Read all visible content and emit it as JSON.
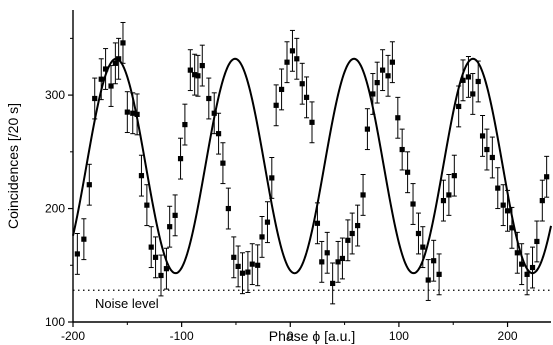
{
  "chart_data": {
    "type": "scatter",
    "xlabel": "Phase ϕ [a.u.]",
    "ylabel": "Coincidences [/20 s]",
    "xlim": [
      -200,
      240
    ],
    "ylim": [
      100,
      375
    ],
    "x_ticks": [
      -200,
      -100,
      0,
      100,
      200
    ],
    "y_ticks": [
      100,
      200,
      300
    ],
    "x_tick_labels": [
      "-200",
      "-100",
      "0",
      "100",
      "200"
    ],
    "y_tick_labels": [
      "100",
      "200",
      "300"
    ],
    "grid": false,
    "series": [
      {
        "style": "points-with-error-bars",
        "x": [
          -196,
          -190,
          -185,
          -180,
          -174,
          -170,
          -165,
          -161,
          -158,
          -154,
          -150,
          -145,
          -141,
          -137,
          -132,
          -128,
          -124,
          -119,
          -114,
          -111,
          -106,
          -101,
          -97,
          -92,
          -88,
          -85,
          -81,
          -75,
          -70,
          -66,
          -62,
          -57,
          -52,
          -48,
          -44,
          -39,
          -35,
          -30,
          -26,
          -21,
          -17,
          -13,
          -8,
          -3,
          2,
          6,
          11,
          15,
          20,
          25,
          29,
          34,
          39,
          44,
          48,
          53,
          57,
          62,
          67,
          71,
          76,
          80,
          85,
          90,
          94,
          99,
          103,
          108,
          113,
          118,
          122,
          127,
          132,
          137,
          141,
          146,
          151,
          155,
          159,
          164,
          168,
          173,
          177,
          181,
          186,
          191,
          196,
          200,
          204,
          209,
          213,
          218,
          223,
          227,
          232,
          236
        ],
        "y": [
          160,
          173,
          221,
          297,
          314,
          323,
          308,
          328,
          332,
          346,
          285,
          284,
          283,
          229,
          203,
          166,
          157,
          141,
          147,
          184,
          194,
          244,
          274,
          322,
          318,
          317,
          326,
          297,
          284,
          266,
          240,
          200,
          157,
          149,
          143,
          144,
          151,
          150,
          175,
          188,
          227,
          291,
          305,
          329,
          339,
          332,
          310,
          298,
          276,
          187,
          153,
          161,
          134,
          153,
          156,
          172,
          178,
          185,
          212,
          270,
          301,
          311,
          322,
          317,
          329,
          280,
          252,
          232,
          204,
          178,
          166,
          137,
          154,
          142,
          207,
          212,
          229,
          290,
          313,
          316,
          301,
          312,
          264,
          252,
          245,
          218,
          203,
          198,
          183,
          161,
          151,
          142,
          148,
          171,
          207,
          228
        ],
        "yerr": 18
      },
      {
        "style": "line",
        "model": "y = 237.5 + 94.5 * cos(2*pi*(x + 50.8)/109.5)",
        "x": [
          -200,
          -190,
          -180,
          -170,
          -160,
          -150,
          -140,
          -130,
          -120,
          -110,
          -100,
          -90,
          -80,
          -70,
          -60,
          -50,
          -40,
          -30,
          -20,
          -10,
          0,
          10,
          20,
          30,
          40,
          50,
          60,
          70,
          80,
          90,
          100,
          110,
          120,
          130,
          140,
          150,
          160,
          170,
          180,
          190,
          200,
          210,
          220,
          230,
          240
        ],
        "y": [
          171.4,
          233.3,
          290.5,
          326.3,
          330.3,
          300.9,
          246.2,
          185.2,
          144.0,
          143.5,
          184.2,
          244.5,
          299.6,
          329.5,
          329.0,
          297.8,
          242.2,
          181.5,
          143.2,
          146.1,
          190.1,
          253.3,
          307.8,
          331.5,
          325.3,
          289.9,
          232.1,
          170.2,
          142.2,
          155.1,
          204.8,
          266.4,
          315.9,
          332.5,
          317.8,
          276.7,
          216.7,
          161.6,
          143.0,
          160.5,
          213.5,
          275.9,
          319.0,
          332.0,
          311.9
        ]
      }
    ],
    "annotations": [
      {
        "text": "Noise level",
        "style": "dotted horizontal line",
        "y": 128
      }
    ]
  }
}
